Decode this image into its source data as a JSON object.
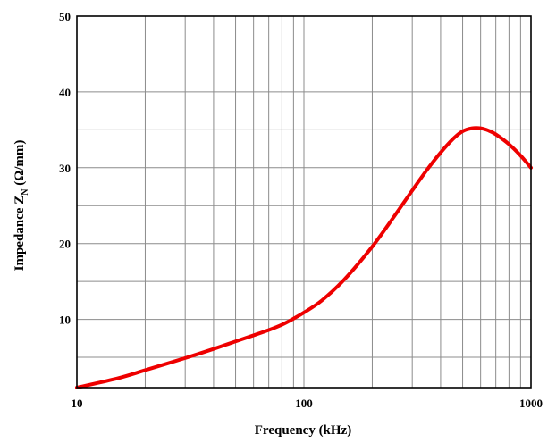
{
  "chart_data": {
    "type": "line",
    "xlabel": "Frequency (kHz)",
    "ylabel": {
      "main": "Impedance Z",
      "subscript": "N",
      "unit": " (Ω/mm)"
    },
    "xscale": "log",
    "xlim": [
      10,
      1000
    ],
    "ylim": [
      1,
      50
    ],
    "x_ticks": [
      {
        "value": 10,
        "label": "10"
      },
      {
        "value": 100,
        "label": "100"
      },
      {
        "value": 1000,
        "label": "1000"
      }
    ],
    "y_ticks": [
      {
        "value": 10,
        "label": "10"
      },
      {
        "value": 20,
        "label": "20"
      },
      {
        "value": 30,
        "label": "30"
      },
      {
        "value": 40,
        "label": "40"
      },
      {
        "value": 50,
        "label": "50"
      }
    ],
    "x_gridlines": [
      20,
      30,
      40,
      50,
      60,
      70,
      80,
      90,
      100,
      200,
      300,
      400,
      500,
      600,
      700,
      800,
      900
    ],
    "y_gridlines": [
      5,
      10,
      15,
      20,
      25,
      30,
      35,
      40,
      45
    ],
    "grid": true,
    "series": [
      {
        "color": "#ee0000",
        "points": [
          [
            10,
            1.0
          ],
          [
            15,
            2.2
          ],
          [
            20,
            3.3
          ],
          [
            30,
            4.9
          ],
          [
            40,
            6.1
          ],
          [
            50,
            7.1
          ],
          [
            60,
            7.9
          ],
          [
            70,
            8.6
          ],
          [
            80,
            9.3
          ],
          [
            90,
            10.1
          ],
          [
            100,
            10.9
          ],
          [
            120,
            12.5
          ],
          [
            150,
            15.2
          ],
          [
            200,
            19.6
          ],
          [
            250,
            23.6
          ],
          [
            300,
            27.0
          ],
          [
            350,
            29.8
          ],
          [
            400,
            32.0
          ],
          [
            450,
            33.7
          ],
          [
            500,
            34.8
          ],
          [
            550,
            35.2
          ],
          [
            600,
            35.2
          ],
          [
            650,
            34.9
          ],
          [
            700,
            34.4
          ],
          [
            800,
            33.1
          ],
          [
            900,
            31.6
          ],
          [
            1000,
            30.0
          ]
        ]
      }
    ]
  }
}
